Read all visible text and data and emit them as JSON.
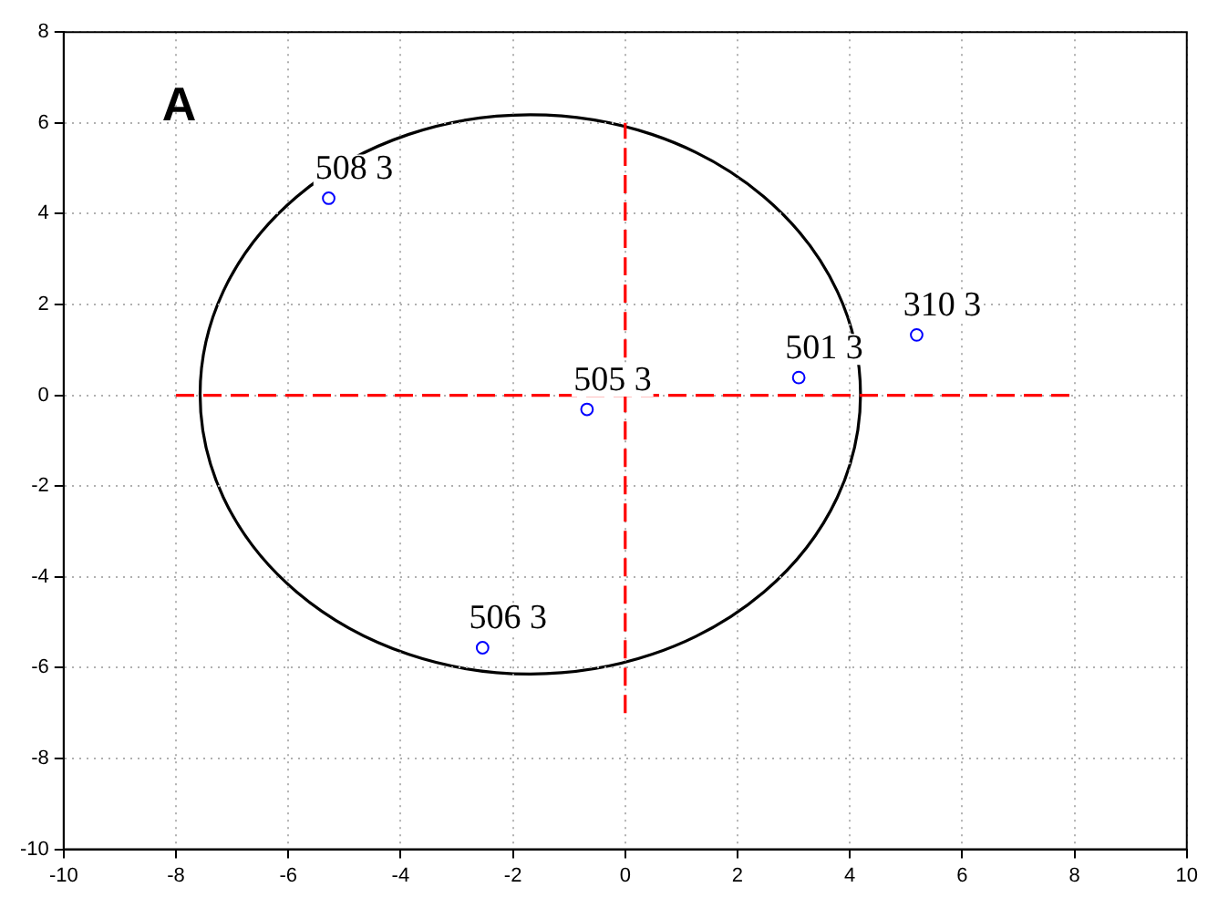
{
  "chart_data": {
    "type": "scatter",
    "xlim": [
      -10,
      10
    ],
    "ylim": [
      -10,
      8
    ],
    "xticks": [
      -10,
      -8,
      -6,
      -4,
      -2,
      0,
      2,
      4,
      6,
      8,
      10
    ],
    "yticks": [
      -10,
      -8,
      -6,
      -4,
      -2,
      0,
      2,
      4,
      6,
      8
    ],
    "grid": true,
    "annotations": [
      "A",
      {
        "text": "508 3",
        "x": -5.28,
        "y": 4.34
      },
      {
        "text": "310 3",
        "x": 5.19,
        "y": 1.33
      },
      {
        "text": "501 3",
        "x": 3.09,
        "y": 0.39
      },
      {
        "text": "505 3",
        "x": -0.68,
        "y": -0.31
      },
      {
        "text": "506 3",
        "x": -2.54,
        "y": -5.56
      }
    ],
    "series": [
      {
        "type": "scatter",
        "color": "#0000ff",
        "marker": "circle",
        "x": [
          -5.28,
          5.19,
          3.09,
          -0.68,
          -2.54
        ],
        "values": [
          4.34,
          1.33,
          0.39,
          -0.31,
          -5.56
        ]
      },
      {
        "type": "line",
        "color": "#ff0000",
        "marker": "none",
        "line_style": "dashed",
        "x": [
          -8,
          8
        ],
        "values": [
          0,
          0
        ]
      },
      {
        "type": "line",
        "color": "#ff0000",
        "marker": "none",
        "line_style": "dashed",
        "x": [
          0,
          0
        ],
        "values": [
          -7,
          6
        ]
      }
    ]
  }
}
